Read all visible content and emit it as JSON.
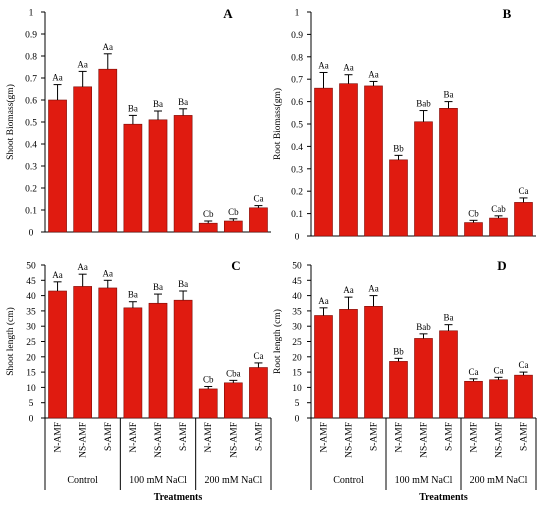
{
  "chart_data": [
    {
      "type": "bar",
      "panel": "A",
      "ylabel": "Shoot Biomass(gm)",
      "ylim": [
        0,
        1
      ],
      "yticks": [
        0,
        0.1,
        0.2,
        0.3,
        0.4,
        0.5,
        0.6,
        0.7,
        0.8,
        0.9,
        1
      ],
      "categories": [
        "N-AMF",
        "NS-AMF",
        "S-AMF",
        "N-AMF",
        "NS-AMF",
        "S-AMF",
        "N-AMF",
        "NS-AMF",
        "S-AMF"
      ],
      "values": [
        0.6,
        0.66,
        0.74,
        0.49,
        0.51,
        0.53,
        0.04,
        0.05,
        0.11
      ],
      "errors": [
        0.07,
        0.07,
        0.07,
        0.04,
        0.04,
        0.03,
        0.01,
        0.01,
        0.01
      ],
      "labels": [
        "Aa",
        "Aa",
        "Aa",
        "Ba",
        "Ba",
        "Ba",
        "Cb",
        "Cb",
        "Ca"
      ],
      "groups": [
        "Control",
        "100 mM NaCl",
        "200 mM NaCl"
      ]
    },
    {
      "type": "bar",
      "panel": "B",
      "ylabel": "Root Biomass(gm)",
      "ylim": [
        0,
        1
      ],
      "yticks": [
        0,
        0.1,
        0.2,
        0.3,
        0.4,
        0.5,
        0.6,
        0.7,
        0.8,
        0.9,
        1
      ],
      "categories": [
        "N-AMF",
        "NS-AMF",
        "S-AMF",
        "N-AMF",
        "NS-AMF",
        "S-AMF",
        "N-AMF",
        "NS-AMF",
        "S-AMF"
      ],
      "values": [
        0.66,
        0.68,
        0.67,
        0.34,
        0.51,
        0.57,
        0.06,
        0.08,
        0.15
      ],
      "errors": [
        0.07,
        0.04,
        0.02,
        0.02,
        0.05,
        0.03,
        0.01,
        0.01,
        0.02
      ],
      "labels": [
        "Aa",
        "Aa",
        "Aa",
        "Bb",
        "Bab",
        "Ba",
        "Cb",
        "Cab",
        "Ca"
      ],
      "groups": [
        "Control",
        "100 mM NaCl",
        "200 mM NaCl"
      ]
    },
    {
      "type": "bar",
      "panel": "C",
      "ylabel": "Shoot length (cm)",
      "ylim": [
        0,
        50
      ],
      "yticks": [
        0,
        5,
        10,
        15,
        20,
        25,
        30,
        35,
        40,
        45,
        50
      ],
      "categories": [
        "N-AMF",
        "NS-AMF",
        "S-AMF",
        "N-AMF",
        "NS-AMF",
        "S-AMF",
        "N-AMF",
        "NS-AMF",
        "S-AMF"
      ],
      "values": [
        41.5,
        43,
        42.5,
        36,
        37.5,
        38.5,
        9.5,
        11.5,
        16.5
      ],
      "errors": [
        3,
        4,
        2.5,
        2,
        3,
        3,
        0.8,
        0.8,
        1.5
      ],
      "labels": [
        "Aa",
        "Aa",
        "Aa",
        "Ba",
        "Ba",
        "Ba",
        "Cb",
        "Cba",
        "Ca"
      ],
      "groups": [
        "Control",
        "100 mM NaCl",
        "200 mM NaCl"
      ],
      "xlabel": "Treatments"
    },
    {
      "type": "bar",
      "panel": "D",
      "ylabel": "Root length (cm)",
      "ylim": [
        0,
        50
      ],
      "yticks": [
        0,
        5,
        10,
        15,
        20,
        25,
        30,
        35,
        40,
        45,
        50
      ],
      "categories": [
        "N-AMF",
        "NS-AMF",
        "S-AMF",
        "N-AMF",
        "NS-AMF",
        "S-AMF",
        "N-AMF",
        "NS-AMF",
        "S-AMF"
      ],
      "values": [
        33.5,
        35.5,
        36.5,
        18.5,
        26,
        28.5,
        12,
        12.5,
        14
      ],
      "errors": [
        2.5,
        4,
        3.5,
        1,
        1.5,
        2,
        0.8,
        0.8,
        1
      ],
      "labels": [
        "Aa",
        "Aa",
        "Aa",
        "Bb",
        "Bab",
        "Ba",
        "Ca",
        "Ca",
        "Ca"
      ],
      "groups": [
        "Control",
        "100 mM NaCl",
        "200 mM NaCl"
      ],
      "xlabel": "Treatments"
    }
  ],
  "colors": {
    "bar": "#e01b10",
    "bar_stroke": "#7a0d08",
    "axis": "#000000"
  }
}
